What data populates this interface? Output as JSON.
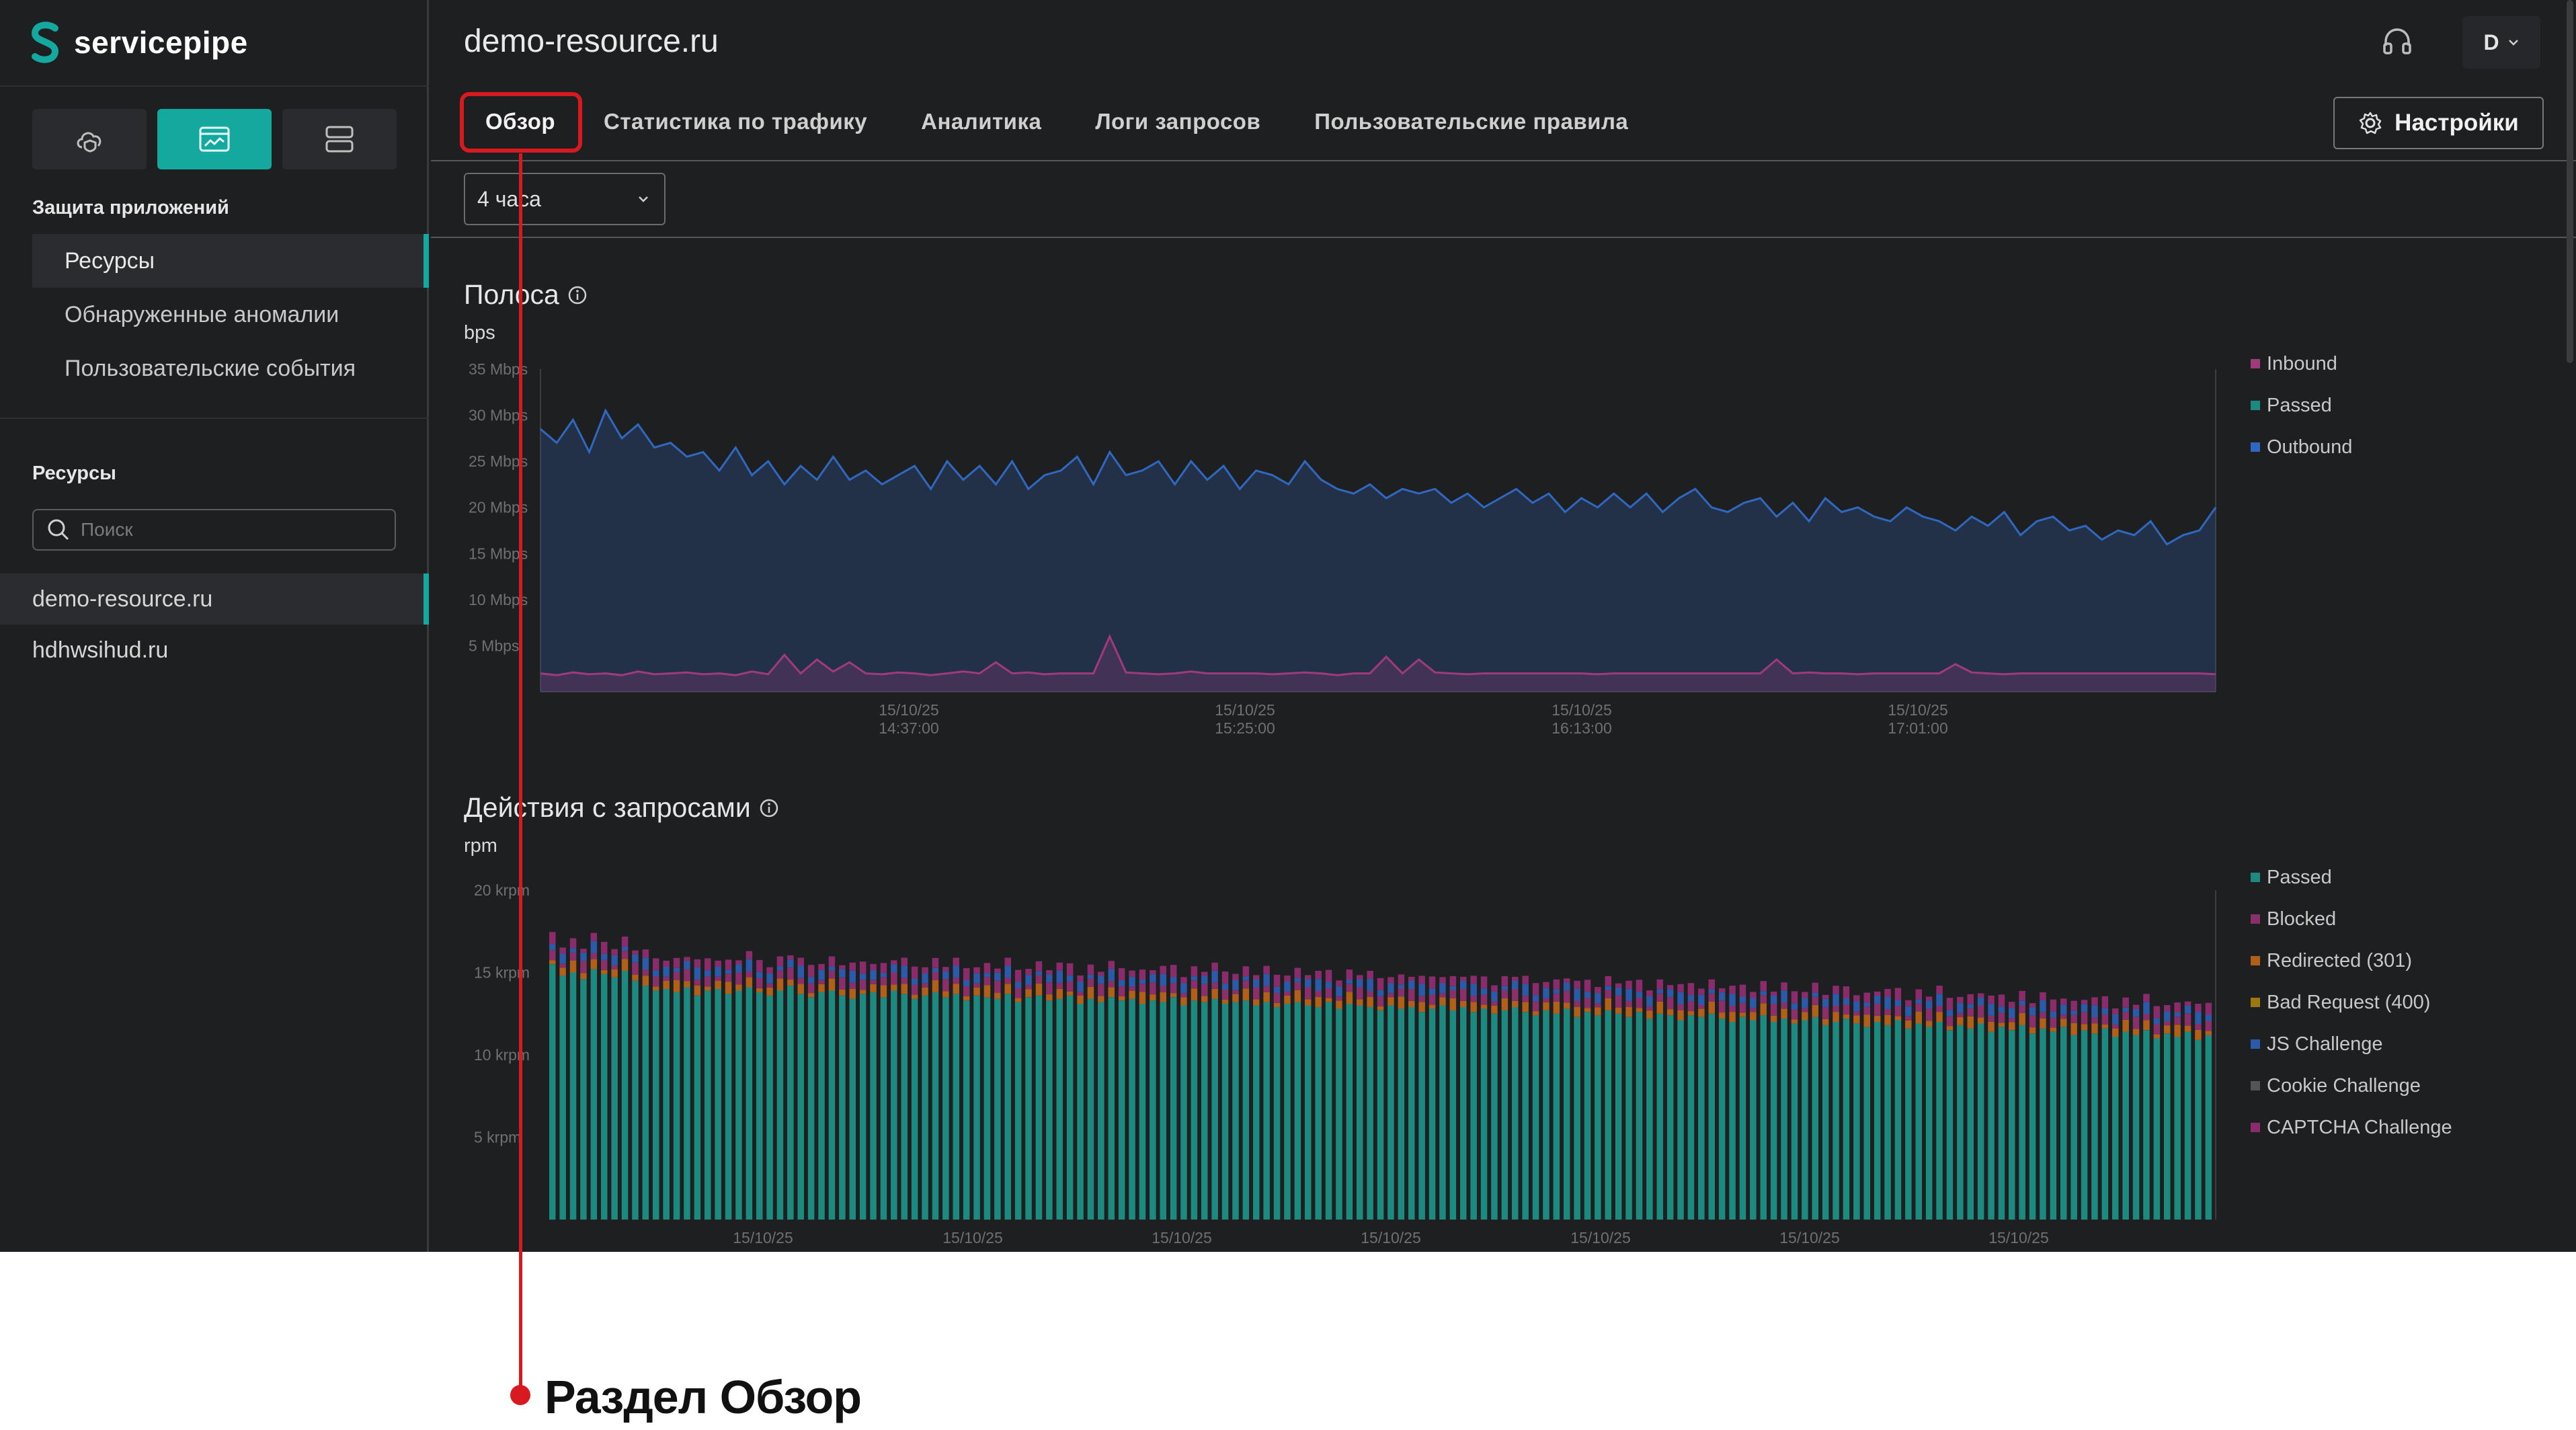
{
  "app": {
    "brand": "servicepipe"
  },
  "sidebar": {
    "section_protection": "Защита приложений",
    "nav": [
      "Ресурсы",
      "Обнаруженные аномалии",
      "Пользовательские события"
    ],
    "section_resources": "Ресурсы",
    "search_placeholder": "Поиск",
    "resources": [
      "demo-resource.ru",
      "hdhwsihud.ru"
    ]
  },
  "header": {
    "title": "demo-resource.ru",
    "user_initial": "D",
    "tabs": [
      "Обзор",
      "Статистика по трафику",
      "Аналитика",
      "Логи запросов",
      "Пользовательские правила"
    ],
    "settings_label": "Настройки"
  },
  "filters": {
    "period": "4 часа"
  },
  "bandwidth": {
    "title": "Полоса",
    "unit": "bps",
    "legend": [
      "Inbound",
      "Passed",
      "Outbound"
    ],
    "y_ticks": [
      "35 Mbps",
      "30 Mbps",
      "25 Mbps",
      "20 Mbps",
      "15 Mbps",
      "10 Mbps",
      "5 Mbps"
    ],
    "x_ticks": [
      {
        "date": "15/10/25",
        "time": "14:37:00"
      },
      {
        "date": "15/10/25",
        "time": "15:25:00"
      },
      {
        "date": "15/10/25",
        "time": "16:13:00"
      },
      {
        "date": "15/10/25",
        "time": "17:01:00"
      }
    ]
  },
  "requests": {
    "title": "Действия с запросами",
    "unit": "rpm",
    "legend": [
      "Passed",
      "Blocked",
      "Redirected (301)",
      "Bad Request (400)",
      "JS Challenge",
      "Cookie Challenge",
      "CAPTCHA Challenge"
    ],
    "y_ticks": [
      "20 krpm",
      "15 krpm",
      "10 krpm",
      "5 krpm"
    ],
    "x_ticks": [
      "15/10/25",
      "15/10/25",
      "15/10/25",
      "15/10/25",
      "15/10/25",
      "15/10/25",
      "15/10/25"
    ]
  },
  "colors": {
    "accent": "#14a89e",
    "inbound": "#a03a7c",
    "passed": "#1d8a80",
    "outbound": "#3068c0",
    "blocked": "#8b2f6a",
    "redirected": "#b06018",
    "bad_request": "#9a7a10",
    "js_challenge": "#2b5aa8",
    "cookie_challenge": "#555555",
    "captcha_challenge": "#8a2b6c",
    "annotation": "#d71920"
  },
  "chart_data": [
    {
      "type": "area",
      "title": "Полоса",
      "ylabel": "bps",
      "ylim": [
        0,
        35
      ],
      "y_unit": "Mbps",
      "series": [
        {
          "name": "Outbound",
          "values": [
            28.5,
            27,
            29.5,
            26,
            30.5,
            27.5,
            29,
            26.5,
            27,
            25.5,
            26,
            24,
            26.5,
            23.5,
            25,
            22.5,
            24.5,
            23,
            25.5,
            23,
            24,
            22.5,
            23.5,
            24.5,
            22,
            25,
            23,
            24.5,
            22.5,
            25,
            22,
            23.5,
            24,
            25.5,
            22.5,
            26,
            23.5,
            24,
            25,
            22.5,
            25,
            23,
            24.5,
            22,
            24,
            23.5,
            22.5,
            25,
            23,
            22,
            21.5,
            22.5,
            21,
            22,
            21.5,
            22,
            20.5,
            21.5,
            20,
            21,
            22,
            20.5,
            21.5,
            19.5,
            21,
            20,
            21.5,
            20,
            21.5,
            19.5,
            21,
            22,
            20,
            19.5,
            20.5,
            21,
            19,
            20.5,
            18.5,
            21,
            19.5,
            20,
            19,
            18.5,
            20,
            19,
            18.5,
            17.5,
            19,
            18,
            19.5,
            17,
            18.5,
            19,
            17.5,
            18,
            16.5,
            17.5,
            17,
            18.5,
            16,
            17,
            17.5,
            20
          ]
        },
        {
          "name": "Inbound",
          "values": [
            2,
            1.8,
            2.1,
            1.9,
            2,
            1.8,
            2.2,
            1.9,
            2,
            2.1,
            1.9,
            2,
            1.8,
            2.2,
            1.9,
            4,
            2,
            3.5,
            2.2,
            3.2,
            2,
            1.9,
            2.1,
            2,
            1.8,
            2,
            2.2,
            2,
            3.2,
            2,
            2.1,
            1.9,
            2,
            2,
            2,
            6,
            2.1,
            2,
            1.9,
            2,
            2.2,
            2,
            2,
            2,
            2,
            1.9,
            2,
            2.1,
            2,
            1.8,
            2,
            2,
            3.8,
            2,
            3.5,
            2.1,
            2,
            1.9,
            2,
            2,
            2,
            2,
            2,
            2,
            2,
            1.9,
            2,
            2,
            2,
            2,
            2,
            2,
            2,
            2,
            2,
            2,
            3.5,
            2,
            2.1,
            2,
            2,
            1.9,
            2,
            2,
            2,
            2,
            2,
            3,
            2.1,
            2,
            1.9,
            2,
            2,
            2,
            2,
            2,
            2,
            2,
            2,
            2,
            2,
            2,
            2,
            1.9
          ]
        }
      ],
      "x_ticks": [
        "15/10/25 14:37:00",
        "15/10/25 15:25:00",
        "15/10/25 16:13:00",
        "15/10/25 17:01:00"
      ]
    },
    {
      "type": "bar",
      "title": "Действия с запросами",
      "ylabel": "rpm",
      "ylim": [
        0,
        20
      ],
      "y_unit": "krpm",
      "stacked": true,
      "passed_values": [
        15.5,
        14.8,
        15,
        14.6,
        15.2,
        14.9,
        14.7,
        15.1,
        14.5,
        14.2,
        13.9,
        14,
        13.8,
        14.1,
        13.6,
        13.9,
        14,
        13.7,
        13.9,
        14.1,
        13.8,
        13.6,
        13.9,
        14.2,
        13.7,
        13.5,
        13.8,
        13.9,
        13.6,
        13.4,
        13.7,
        13.8,
        13.5,
        13.9,
        13.7,
        13.4,
        13.6,
        13.8,
        13.5,
        13.7,
        13.3,
        13.6,
        13.5,
        13.4,
        13.7,
        13.2,
        13.5,
        13.6,
        13.3,
        13.4,
        13.6,
        13.1,
        13.4,
        13.2,
        13.5,
        13.3,
        13.4,
        13.1,
        13.3,
        13.2,
        13.5,
        13,
        13.3,
        13.2,
        13.4,
        13.1,
        13.2,
        13.3,
        13,
        13.2,
        12.9,
        13.1,
        13.2,
        13,
        12.9,
        13.2,
        12.8,
        13.1,
        13,
        12.9,
        12.7,
        13,
        12.8,
        12.9,
        12.6,
        12.8,
        13,
        12.7,
        12.9,
        12.6,
        12.8,
        12.5,
        12.7,
        12.9,
        12.6,
        12.4,
        12.7,
        12.5,
        12.8,
        12.3,
        12.6,
        12.4,
        12.7,
        12.5,
        12.3,
        12.6,
        12.2,
        12.5,
        12.4,
        12.1,
        12.4,
        12.3,
        12.5,
        12.2,
        12,
        12.3,
        12.1,
        12.4,
        12,
        12.2,
        11.9,
        12.1,
        12.3,
        11.8,
        12,
        12.2,
        11.9,
        11.7,
        12,
        11.8,
        12.1,
        11.6,
        11.9,
        11.7,
        12,
        11.5,
        11.8,
        11.6,
        11.9,
        11.4,
        11.7,
        11.5,
        11.8,
        11.3,
        11.6,
        11.4,
        11.7,
        11.2,
        11.5,
        11.3,
        11.6,
        11.1,
        11.4,
        11.2,
        11.5,
        11,
        11.3,
        11.1,
        11.4,
        10.9,
        11.2
      ]
    }
  ]
}
